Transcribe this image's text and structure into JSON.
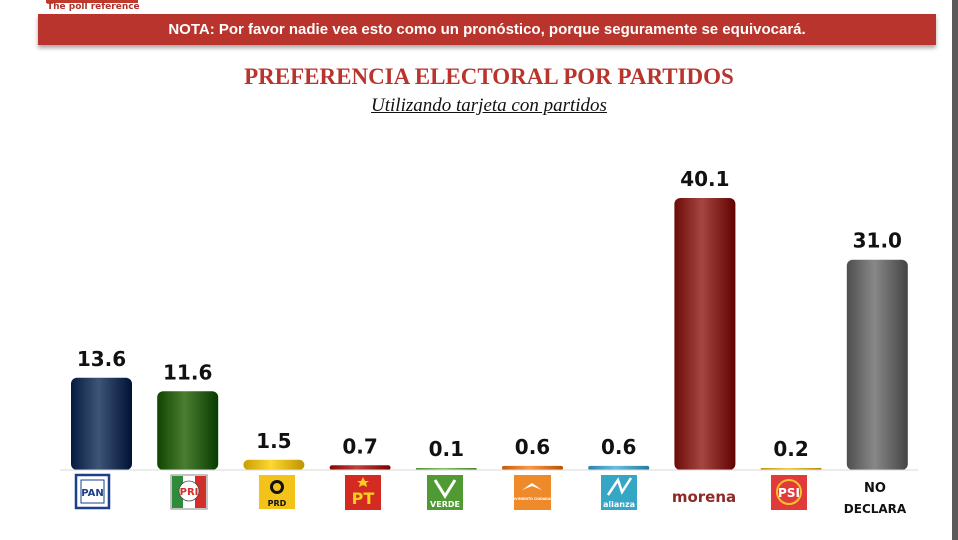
{
  "header": {
    "logo_text": "The poll reference",
    "note": "NOTA: Por favor nadie vea esto como un pronóstico, porque seguramente se equivocará."
  },
  "chart_data": {
    "type": "bar",
    "title": "PREFERENCIA ELECTORAL POR PARTIDOS",
    "subtitle": "Utilizando tarjeta con partidos",
    "categories": [
      "PAN",
      "PRI",
      "PRD",
      "PT",
      "VERDE",
      "MOVIMIENTO CIUDADANO",
      "alianza",
      "morena",
      "PSI",
      "NO DECLARA"
    ],
    "values": [
      13.6,
      11.6,
      1.5,
      0.7,
      0.1,
      0.6,
      0.6,
      40.1,
      0.2,
      31.0
    ],
    "colors": [
      "#22395c",
      "#2f6214",
      "#e6bc16",
      "#a42522",
      "#6aa84f",
      "#e07b2a",
      "#4aa3c7",
      "#8a2a26",
      "#d8b02a",
      "#6c6c6c"
    ],
    "ylim": [
      0,
      40.1
    ],
    "grid": false,
    "legend": "none",
    "logo_texts": {
      "PAN": "PAN",
      "PRI": "PRI",
      "PRD": "PRD",
      "PT": "PT",
      "VERDE": "VERDE",
      "MC": "MOVIMIENTO CIUDADANO",
      "alianza": "alianza",
      "morena": "morena",
      "PSI": "PSI",
      "no_declara_line1": "NO",
      "no_declara_line2": "DECLARA"
    }
  }
}
